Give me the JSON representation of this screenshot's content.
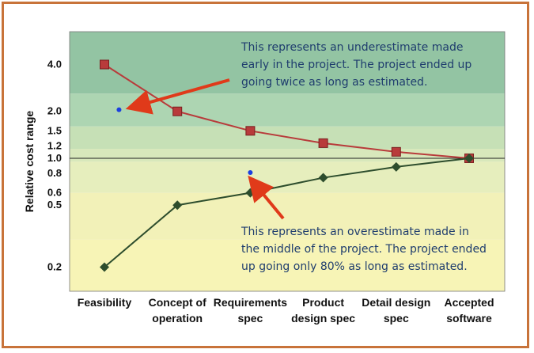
{
  "chart_data": {
    "type": "line",
    "ylabel": "Relative cost range",
    "yscale": "log",
    "ylim": [
      0.14,
      6.5
    ],
    "yticks": [
      {
        "value": 0.2,
        "label": "0.2"
      },
      {
        "value": 0.5,
        "label": "0.5"
      },
      {
        "value": 0.6,
        "label": "0.6"
      },
      {
        "value": 0.8,
        "label": "0.8"
      },
      {
        "value": 1.0,
        "label": "1.0"
      },
      {
        "value": 1.2,
        "label": "1.2"
      },
      {
        "value": 1.5,
        "label": "1.5"
      },
      {
        "value": 2.0,
        "label": "2.0"
      },
      {
        "value": 4.0,
        "label": "4.0"
      }
    ],
    "categories": [
      [
        "Feasibility"
      ],
      [
        "Concept of",
        "operation"
      ],
      [
        "Requirements",
        "spec"
      ],
      [
        "Product",
        "design spec"
      ],
      [
        "Detail design",
        "spec"
      ],
      [
        "Accepted",
        "software"
      ]
    ],
    "series": [
      {
        "color": "#b83b3b",
        "marker": "square",
        "values": [
          4.0,
          2.0,
          1.5,
          1.25,
          1.1,
          1.0
        ]
      },
      {
        "color": "#2d4d2d",
        "marker": "diamond",
        "values": [
          0.2,
          0.5,
          0.6,
          0.75,
          0.88,
          1.0
        ]
      }
    ],
    "extra_points": [
      {
        "category_index": 0.2,
        "value": 2.05,
        "color": "#1a3fe0"
      },
      {
        "category_index": 2.0,
        "value": 0.81,
        "color": "#1a3fe0"
      }
    ],
    "annotations": [
      {
        "lines": [
          "This represents an underestimate made",
          "early in the project. The project ended up",
          "going twice as long as estimated."
        ]
      },
      {
        "lines": [
          "This represents an overestimate made in",
          "the middle of the project. The project ended",
          "up going only 80% as long as estimated."
        ]
      }
    ],
    "colors": {
      "frame": "#c8733a",
      "arrow": "#e03a1a",
      "bands": [
        "#93c4a3",
        "#add5b2",
        "#c6e0b6",
        "#d8e8bb",
        "#e6eebd",
        "#f2f1b8",
        "#f7f4b6"
      ]
    }
  }
}
